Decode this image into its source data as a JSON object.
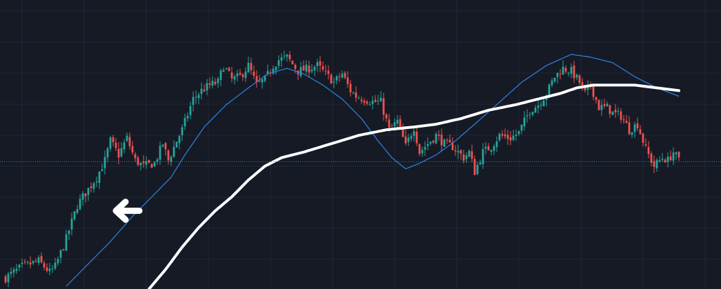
{
  "chart_data": {
    "type": "candlestick",
    "title": "",
    "xlabel": "",
    "ylabel": "",
    "grid": true,
    "ylim": [
      0,
      100
    ],
    "bar_count": 245,
    "last_price_line": 45.6,
    "colors": {
      "background": "#161a25",
      "grid": "#232733",
      "up": "#26a69a",
      "down": "#ef5350",
      "ma_fast": "#2a7ed8",
      "ma_slow": "#ffffff",
      "last_price_line": "#26a69a",
      "arrow": "#ffffff"
    },
    "close_anchors": [
      [
        0,
        4
      ],
      [
        6,
        8
      ],
      [
        12,
        10
      ],
      [
        16,
        6
      ],
      [
        18,
        8
      ],
      [
        22,
        18
      ],
      [
        24,
        24
      ],
      [
        26,
        30
      ],
      [
        28,
        33
      ],
      [
        33,
        40
      ],
      [
        36,
        46
      ],
      [
        38,
        53
      ],
      [
        41,
        48
      ],
      [
        44,
        54
      ],
      [
        47,
        46
      ],
      [
        50,
        44
      ],
      [
        54,
        45
      ],
      [
        57,
        52
      ],
      [
        59,
        46
      ],
      [
        62,
        53
      ],
      [
        64,
        57
      ],
      [
        68,
        68
      ],
      [
        71,
        71
      ],
      [
        74,
        73
      ],
      [
        77,
        74
      ],
      [
        79,
        80
      ],
      [
        82,
        75
      ],
      [
        85,
        76
      ],
      [
        88,
        80
      ],
      [
        91,
        73
      ],
      [
        94,
        75
      ],
      [
        97,
        80
      ],
      [
        99,
        82
      ],
      [
        102,
        83
      ],
      [
        106,
        78
      ],
      [
        110,
        79
      ],
      [
        113,
        80
      ],
      [
        116,
        77
      ],
      [
        119,
        74
      ],
      [
        122,
        77
      ],
      [
        125,
        71
      ],
      [
        127,
        69
      ],
      [
        130,
        68
      ],
      [
        133,
        67
      ],
      [
        136,
        67
      ],
      [
        139,
        57
      ],
      [
        142,
        60
      ],
      [
        145,
        51
      ],
      [
        148,
        58
      ],
      [
        150,
        49
      ],
      [
        153,
        52
      ],
      [
        156,
        55
      ],
      [
        159,
        52
      ],
      [
        162,
        51
      ],
      [
        166,
        47
      ],
      [
        168,
        49
      ],
      [
        170,
        42
      ],
      [
        173,
        49
      ],
      [
        176,
        51
      ],
      [
        179,
        55
      ],
      [
        183,
        54
      ],
      [
        186,
        56
      ],
      [
        190,
        64
      ],
      [
        193,
        66
      ],
      [
        196,
        70
      ],
      [
        199,
        76
      ],
      [
        202,
        79
      ],
      [
        205,
        78
      ],
      [
        208,
        74
      ],
      [
        210,
        70
      ],
      [
        212,
        73
      ],
      [
        215,
        65
      ],
      [
        218,
        65
      ],
      [
        220,
        63
      ],
      [
        223,
        62
      ],
      [
        226,
        57
      ],
      [
        229,
        59
      ],
      [
        232,
        50
      ],
      [
        235,
        44
      ],
      [
        238,
        47
      ],
      [
        240,
        46
      ],
      [
        242,
        49
      ],
      [
        244,
        46
      ]
    ],
    "ma_fast_anchors": [
      [
        22,
        1
      ],
      [
        30,
        9
      ],
      [
        38,
        17
      ],
      [
        46,
        26
      ],
      [
        54,
        34
      ],
      [
        60,
        40
      ],
      [
        65,
        48
      ],
      [
        72,
        58
      ],
      [
        80,
        66
      ],
      [
        88,
        72
      ],
      [
        95,
        77
      ],
      [
        102,
        79
      ],
      [
        108,
        77
      ],
      [
        115,
        73
      ],
      [
        122,
        68
      ],
      [
        129,
        61
      ],
      [
        135,
        53
      ],
      [
        140,
        47
      ],
      [
        145,
        43
      ],
      [
        150,
        45
      ],
      [
        156,
        48
      ],
      [
        163,
        53
      ],
      [
        170,
        59
      ],
      [
        178,
        66
      ],
      [
        187,
        74
      ],
      [
        196,
        80
      ],
      [
        205,
        84
      ],
      [
        212,
        83
      ],
      [
        220,
        81
      ],
      [
        228,
        76
      ],
      [
        236,
        72
      ],
      [
        244,
        69
      ]
    ],
    "ma_slow_anchors": [
      [
        52,
        0
      ],
      [
        58,
        7
      ],
      [
        64,
        15
      ],
      [
        70,
        22
      ],
      [
        76,
        28
      ],
      [
        82,
        33
      ],
      [
        88,
        39
      ],
      [
        94,
        44
      ],
      [
        100,
        47
      ],
      [
        108,
        49
      ],
      [
        118,
        52
      ],
      [
        128,
        55
      ],
      [
        138,
        57
      ],
      [
        148,
        58
      ],
      [
        156,
        59
      ],
      [
        165,
        61
      ],
      [
        175,
        64
      ],
      [
        185,
        66
      ],
      [
        193,
        68
      ],
      [
        201,
        70
      ],
      [
        207,
        72
      ],
      [
        213,
        73
      ],
      [
        220,
        73
      ],
      [
        228,
        73
      ],
      [
        236,
        72
      ],
      [
        244,
        71
      ]
    ],
    "annotation": {
      "type": "arrow",
      "icon": "left-arrow-icon",
      "points_at_bar": 40,
      "value": 28
    }
  }
}
